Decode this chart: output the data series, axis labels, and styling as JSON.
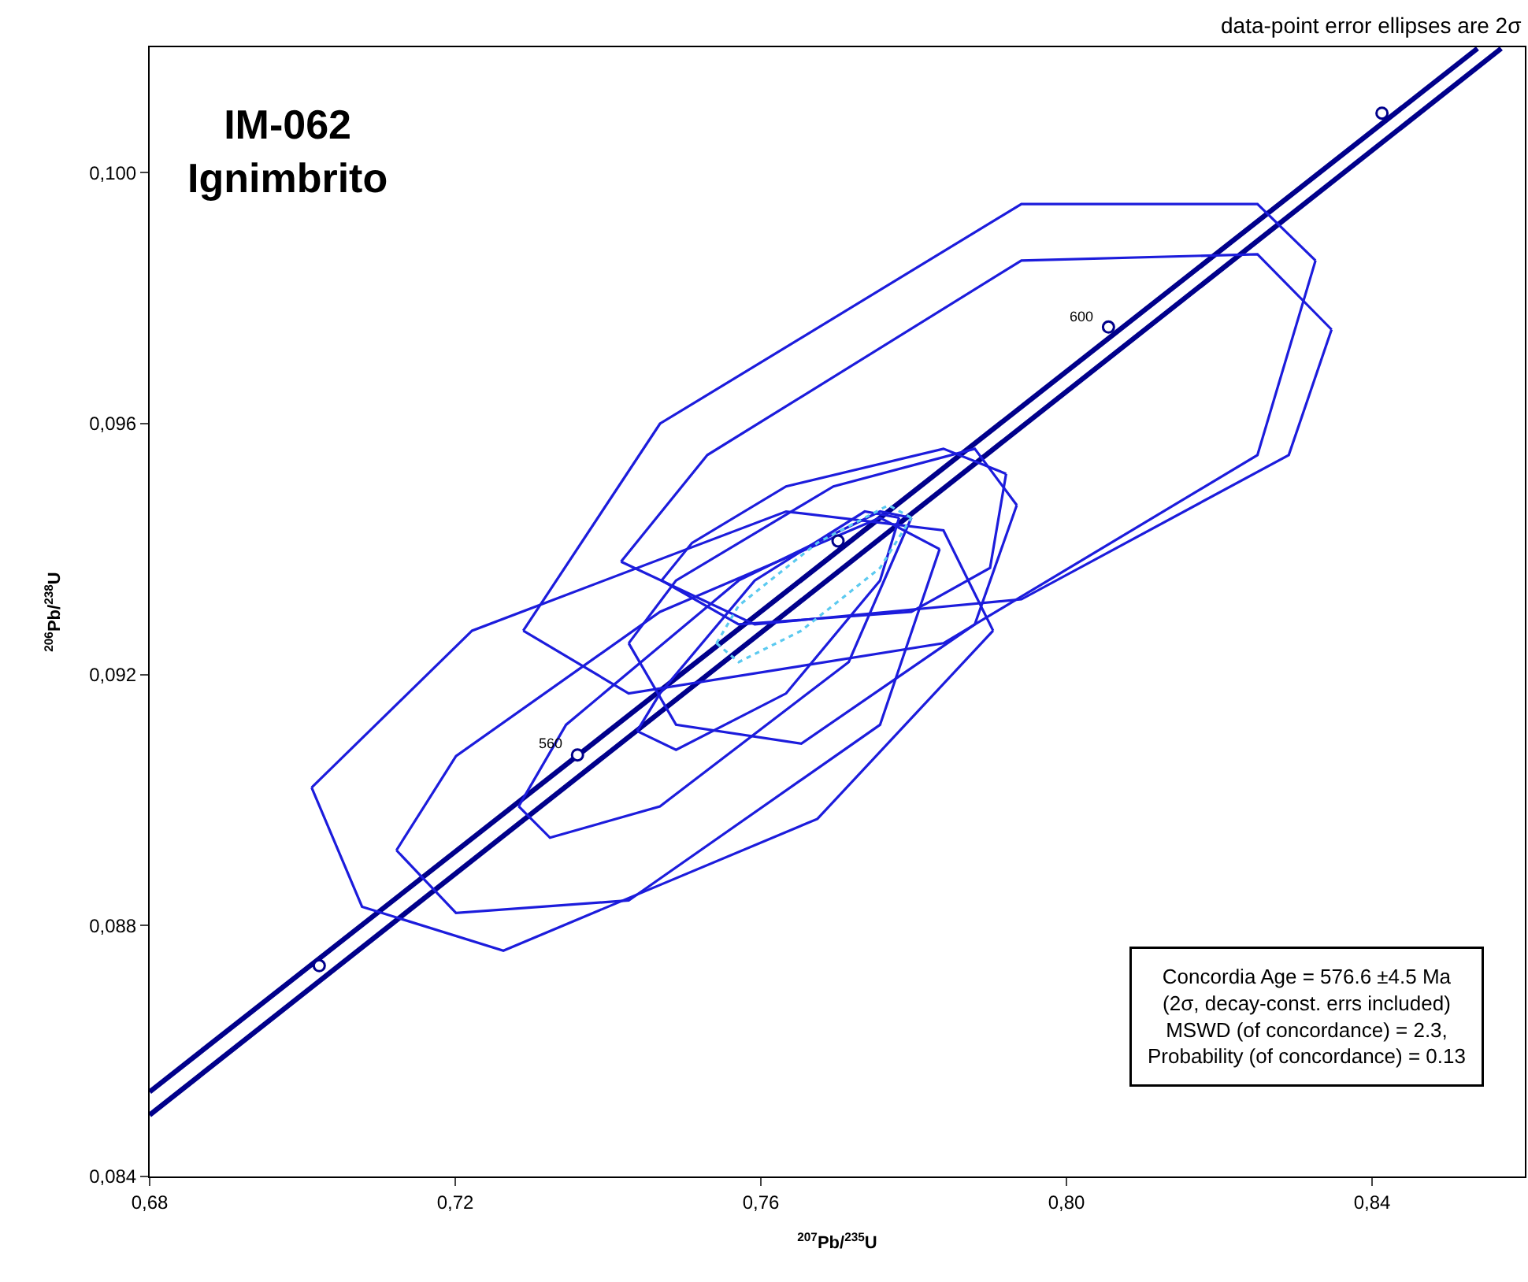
{
  "chart_data": {
    "type": "line",
    "title": "IM-062\nIgnimbrito",
    "xlabel": "$^{207}$Pb/$^{235}$U",
    "ylabel": "$^{206}$Pb/$^{238}$U",
    "xlim": [
      0.68,
      0.86
    ],
    "ylim": [
      0.084,
      0.102
    ],
    "xticks": [
      {
        "value": 0.68,
        "label": "0,68"
      },
      {
        "value": 0.72,
        "label": "0,72"
      },
      {
        "value": 0.76,
        "label": "0,76"
      },
      {
        "value": 0.8,
        "label": "0,80"
      },
      {
        "value": 0.84,
        "label": "0,84"
      }
    ],
    "yticks": [
      {
        "value": 0.084,
        "label": "0,084"
      },
      {
        "value": 0.088,
        "label": "0,088"
      },
      {
        "value": 0.092,
        "label": "0,092"
      },
      {
        "value": 0.096,
        "label": "0,096"
      },
      {
        "value": 0.1,
        "label": "0,100"
      }
    ],
    "marker": "none",
    "series": [
      {
        "color": "#00008b",
        "x": [
          0.68,
          0.8538
        ],
        "values": [
          0.08535,
          0.10198
        ]
      },
      {
        "color": "#00008b",
        "x": [
          0.68,
          0.8569
        ],
        "values": [
          0.08498,
          0.10198
        ]
      },
      {
        "color": "#1c1cdc",
        "x": [
          0.7012,
          0.7078,
          0.7263,
          0.7674,
          0.7904
        ],
        "values": [
          0.0902,
          0.0883,
          0.0876,
          0.0897,
          0.0927
        ]
      },
      {
        "color": "#1c1cdc",
        "x": [
          0.7012,
          0.7222,
          0.7633,
          0.7839,
          0.7904
        ],
        "values": [
          0.0902,
          0.0927,
          0.0946,
          0.0943,
          0.0927
        ]
      },
      {
        "color": "#1c1cdc",
        "x": [
          0.7289,
          0.7427,
          0.7839,
          0.825,
          0.8326
        ],
        "values": [
          0.0927,
          0.0917,
          0.0925,
          0.0955,
          0.0986
        ]
      },
      {
        "color": "#1c1cdc",
        "x": [
          0.7289,
          0.7468,
          0.7941,
          0.825,
          0.8326
        ],
        "values": [
          0.0927,
          0.096,
          0.0995,
          0.0995,
          0.0986
        ]
      },
      {
        "color": "#1c1cdc",
        "x": [
          0.7417,
          0.7592,
          0.7941,
          0.8291,
          0.8347
        ],
        "values": [
          0.0938,
          0.0928,
          0.0932,
          0.0955,
          0.0975
        ]
      },
      {
        "color": "#1c1cdc",
        "x": [
          0.7417,
          0.753,
          0.7941,
          0.825,
          0.8347
        ],
        "values": [
          0.0938,
          0.0955,
          0.0986,
          0.0987,
          0.0975
        ]
      },
      {
        "color": "#1c1cdc",
        "x": [
          0.747,
          0.7571,
          0.7797,
          0.79,
          0.7921
        ],
        "values": [
          0.0935,
          0.0928,
          0.093,
          0.0937,
          0.0952
        ]
      },
      {
        "color": "#1c1cdc",
        "x": [
          0.747,
          0.751,
          0.7633,
          0.7839,
          0.7921
        ],
        "values": [
          0.0935,
          0.0941,
          0.095,
          0.0956,
          0.0952
        ]
      },
      {
        "color": "#1c1cdc",
        "x": [
          0.7123,
          0.7201,
          0.7427,
          0.7756,
          0.7834
        ],
        "values": [
          0.0892,
          0.0882,
          0.0884,
          0.0912,
          0.094
        ]
      },
      {
        "color": "#1c1cdc",
        "x": [
          0.7123,
          0.7201,
          0.7468,
          0.7756,
          0.7834
        ],
        "values": [
          0.0892,
          0.0907,
          0.093,
          0.0945,
          0.094
        ]
      },
      {
        "color": "#1c1cdc",
        "x": [
          0.7283,
          0.7324,
          0.7468,
          0.7715,
          0.7797
        ],
        "values": [
          0.0899,
          0.0894,
          0.0899,
          0.0922,
          0.0945
        ]
      },
      {
        "color": "#1c1cdc",
        "x": [
          0.7283,
          0.7345,
          0.7571,
          0.7756,
          0.7797
        ],
        "values": [
          0.0899,
          0.0912,
          0.0935,
          0.0946,
          0.0945
        ]
      },
      {
        "color": "#1c1cdc",
        "x": [
          0.7438,
          0.7489,
          0.7633,
          0.7756,
          0.7781
        ],
        "values": [
          0.0911,
          0.0908,
          0.0917,
          0.0935,
          0.0945
        ]
      },
      {
        "color": "#1c1cdc",
        "x": [
          0.7438,
          0.7468,
          0.7592,
          0.7736,
          0.7781
        ],
        "values": [
          0.0911,
          0.0917,
          0.0935,
          0.0946,
          0.0945
        ]
      },
      {
        "color": "#1c1cdc",
        "x": [
          0.7427,
          0.7489,
          0.7653,
          0.788,
          0.7935
        ],
        "values": [
          0.0925,
          0.0912,
          0.0909,
          0.0928,
          0.0947
        ]
      },
      {
        "color": "#1c1cdc",
        "x": [
          0.7427,
          0.7489,
          0.7695,
          0.788,
          0.7935
        ],
        "values": [
          0.0925,
          0.0935,
          0.095,
          0.0956,
          0.0947
        ]
      },
      {
        "color": "#5ccaf0",
        "line_style": "dotted",
        "x": [
          0.7542,
          0.7571,
          0.7653,
          0.7756,
          0.7797
        ],
        "values": [
          0.0925,
          0.0922,
          0.0927,
          0.0937,
          0.0945
        ]
      },
      {
        "color": "#5ccaf0",
        "line_style": "dotted",
        "x": [
          0.7542,
          0.7571,
          0.7674,
          0.7767,
          0.7797
        ],
        "values": [
          0.0925,
          0.0931,
          0.0941,
          0.0947,
          0.0945
        ]
      },
      {
        "type": "scatter",
        "color": "#ffffff",
        "marker": "circle",
        "x": [
          0.7022,
          0.736,
          0.7701,
          0.8055,
          0.8413
        ],
        "values": [
          0.08736,
          0.09072,
          0.09413,
          0.09754,
          0.10095
        ]
      }
    ],
    "annotations": [
      {
        "text": "560",
        "x": 0.736,
        "y": 0.09072
      },
      {
        "text": "600",
        "x": 0.8055,
        "y": 0.09754
      },
      "data-point error ellipses are 2σ",
      "Concordia Age = 576.6 ±4.5 Ma\n(2σ, decay-const. errs included)\nMSWD (of concordance) = 2.3,\nProbability (of concordance) = 0.13"
    ]
  }
}
